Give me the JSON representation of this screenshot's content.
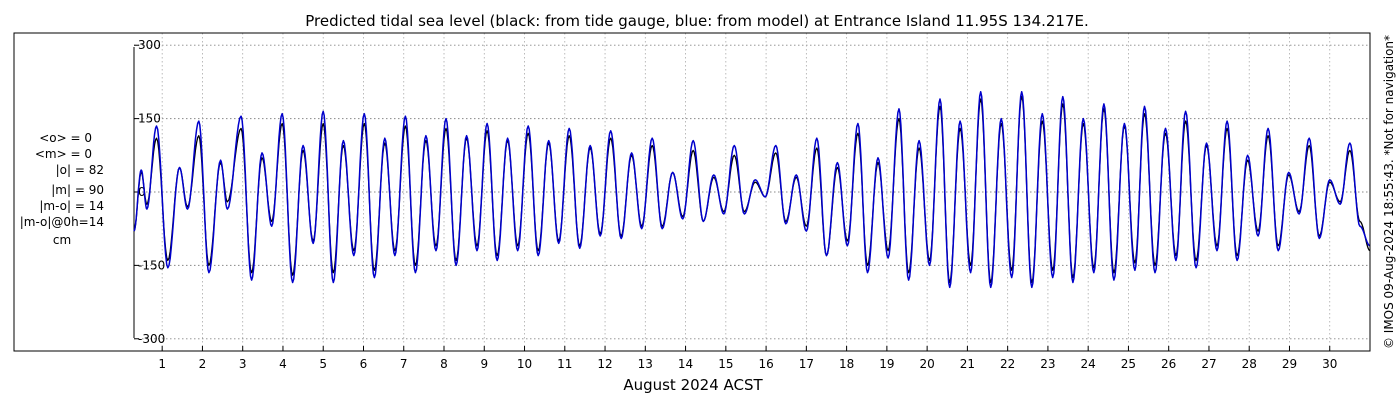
{
  "chart_data": {
    "type": "line",
    "title": "Predicted tidal sea level (black: from tide gauge, blue: from model) at Entrance Island 11.95S 134.217E.",
    "xlabel": "August 2024 ACST",
    "ylabel": "",
    "xlim": [
      0.3,
      31.0
    ],
    "ylim": [
      -325,
      325
    ],
    "yticks": [
      300,
      150,
      0,
      -150,
      -300
    ],
    "ytick_labels": [
      "300",
      "150",
      "0",
      "-150",
      "-300"
    ],
    "xticks": [
      1,
      2,
      3,
      4,
      5,
      6,
      7,
      8,
      9,
      10,
      11,
      12,
      13,
      14,
      15,
      16,
      17,
      18,
      19,
      20,
      21,
      22,
      23,
      24,
      25,
      26,
      27,
      28,
      29,
      30
    ],
    "xtick_labels": [
      "1",
      "2",
      "3",
      "4",
      "5",
      "6",
      "7",
      "8",
      "9",
      "10",
      "11",
      "12",
      "13",
      "14",
      "15",
      "16",
      "17",
      "18",
      "19",
      "20",
      "21",
      "22",
      "23",
      "24",
      "25",
      "26",
      "27",
      "28",
      "29",
      "30"
    ],
    "grid": true,
    "stats": [
      "<o> = 0",
      "<m> = 0",
      "|o| = 82",
      "|m| = 90",
      "|m-o| = 14",
      "|m-o|@0h=14",
      "cm"
    ],
    "credit": "© IMOS 09-Aug-2024 18:55:43. *Not for navigation*",
    "colors": {
      "gauge": "#000000",
      "model": "#0000cc",
      "grid": "#888888",
      "frame": "#000000"
    },
    "series": [
      {
        "name": "",
        "color": "#000000",
        "extrema": [
          [
            0.3,
            -80
          ],
          [
            0.48,
            40
          ],
          [
            0.62,
            -25
          ],
          [
            0.86,
            110
          ],
          [
            1.14,
            -140
          ],
          [
            1.43,
            50
          ],
          [
            1.63,
            -30
          ],
          [
            1.91,
            115
          ],
          [
            2.16,
            -150
          ],
          [
            2.45,
            60
          ],
          [
            2.62,
            -20
          ],
          [
            2.96,
            130
          ],
          [
            3.22,
            -165
          ],
          [
            3.48,
            70
          ],
          [
            3.72,
            -60
          ],
          [
            3.98,
            140
          ],
          [
            4.24,
            -170
          ],
          [
            4.5,
            85
          ],
          [
            4.75,
            -100
          ],
          [
            5.0,
            140
          ],
          [
            5.25,
            -165
          ],
          [
            5.5,
            95
          ],
          [
            5.76,
            -120
          ],
          [
            6.02,
            140
          ],
          [
            6.27,
            -160
          ],
          [
            6.53,
            100
          ],
          [
            6.78,
            -120
          ],
          [
            7.04,
            135
          ],
          [
            7.29,
            -150
          ],
          [
            7.55,
            105
          ],
          [
            7.8,
            -110
          ],
          [
            8.05,
            130
          ],
          [
            8.3,
            -140
          ],
          [
            8.56,
            110
          ],
          [
            8.82,
            -110
          ],
          [
            9.07,
            125
          ],
          [
            9.32,
            -130
          ],
          [
            9.58,
            105
          ],
          [
            9.83,
            -110
          ],
          [
            10.09,
            120
          ],
          [
            10.34,
            -120
          ],
          [
            10.6,
            100
          ],
          [
            10.85,
            -100
          ],
          [
            11.11,
            115
          ],
          [
            11.37,
            -110
          ],
          [
            11.63,
            90
          ],
          [
            11.88,
            -85
          ],
          [
            12.14,
            110
          ],
          [
            12.4,
            -90
          ],
          [
            12.66,
            75
          ],
          [
            12.91,
            -70
          ],
          [
            13.17,
            95
          ],
          [
            13.42,
            -70
          ],
          [
            13.68,
            40
          ],
          [
            13.93,
            -50
          ],
          [
            14.19,
            85
          ],
          [
            14.44,
            -60
          ],
          [
            14.7,
            30
          ],
          [
            14.95,
            -40
          ],
          [
            15.21,
            75
          ],
          [
            15.46,
            -40
          ],
          [
            15.73,
            20
          ],
          [
            15.98,
            -10
          ],
          [
            16.24,
            80
          ],
          [
            16.49,
            -60
          ],
          [
            16.75,
            30
          ],
          [
            17.0,
            -70
          ],
          [
            17.26,
            90
          ],
          [
            17.5,
            -130
          ],
          [
            17.77,
            50
          ],
          [
            18.02,
            -100
          ],
          [
            18.28,
            120
          ],
          [
            18.52,
            -150
          ],
          [
            18.78,
            60
          ],
          [
            19.03,
            -120
          ],
          [
            19.3,
            150
          ],
          [
            19.54,
            -165
          ],
          [
            19.8,
            90
          ],
          [
            20.06,
            -140
          ],
          [
            20.32,
            175
          ],
          [
            20.56,
            -185
          ],
          [
            20.82,
            130
          ],
          [
            21.08,
            -150
          ],
          [
            21.33,
            190
          ],
          [
            21.58,
            -185
          ],
          [
            21.84,
            140
          ],
          [
            22.1,
            -160
          ],
          [
            22.35,
            195
          ],
          [
            22.6,
            -185
          ],
          [
            22.86,
            145
          ],
          [
            23.12,
            -160
          ],
          [
            23.37,
            180
          ],
          [
            23.62,
            -175
          ],
          [
            23.88,
            140
          ],
          [
            24.14,
            -155
          ],
          [
            24.39,
            170
          ],
          [
            24.64,
            -165
          ],
          [
            24.9,
            135
          ],
          [
            25.16,
            -145
          ],
          [
            25.4,
            160
          ],
          [
            25.66,
            -150
          ],
          [
            25.92,
            120
          ],
          [
            26.18,
            -130
          ],
          [
            26.42,
            145
          ],
          [
            26.68,
            -140
          ],
          [
            26.94,
            95
          ],
          [
            27.2,
            -110
          ],
          [
            27.45,
            130
          ],
          [
            27.7,
            -130
          ],
          [
            27.96,
            65
          ],
          [
            28.22,
            -80
          ],
          [
            28.47,
            115
          ],
          [
            28.72,
            -110
          ],
          [
            28.98,
            35
          ],
          [
            29.24,
            -40
          ],
          [
            29.49,
            95
          ],
          [
            29.74,
            -90
          ],
          [
            30.0,
            20
          ],
          [
            30.26,
            -20
          ],
          [
            30.5,
            85
          ],
          [
            30.75,
            -60
          ],
          [
            31.0,
            -120
          ]
        ]
      },
      {
        "name": "",
        "color": "#0000cc",
        "extrema": [
          [
            0.3,
            -80
          ],
          [
            0.48,
            45
          ],
          [
            0.62,
            -35
          ],
          [
            0.86,
            135
          ],
          [
            1.14,
            -155
          ],
          [
            1.43,
            50
          ],
          [
            1.63,
            -35
          ],
          [
            1.91,
            145
          ],
          [
            2.16,
            -165
          ],
          [
            2.45,
            65
          ],
          [
            2.62,
            -35
          ],
          [
            2.96,
            155
          ],
          [
            3.22,
            -180
          ],
          [
            3.48,
            80
          ],
          [
            3.72,
            -70
          ],
          [
            3.98,
            160
          ],
          [
            4.24,
            -185
          ],
          [
            4.5,
            95
          ],
          [
            4.75,
            -105
          ],
          [
            5.0,
            165
          ],
          [
            5.25,
            -185
          ],
          [
            5.5,
            105
          ],
          [
            5.76,
            -130
          ],
          [
            6.02,
            160
          ],
          [
            6.27,
            -175
          ],
          [
            6.53,
            110
          ],
          [
            6.78,
            -130
          ],
          [
            7.04,
            155
          ],
          [
            7.29,
            -165
          ],
          [
            7.55,
            115
          ],
          [
            7.8,
            -120
          ],
          [
            8.05,
            150
          ],
          [
            8.3,
            -150
          ],
          [
            8.56,
            115
          ],
          [
            8.82,
            -120
          ],
          [
            9.07,
            140
          ],
          [
            9.32,
            -140
          ],
          [
            9.58,
            110
          ],
          [
            9.83,
            -120
          ],
          [
            10.09,
            135
          ],
          [
            10.34,
            -130
          ],
          [
            10.6,
            105
          ],
          [
            10.85,
            -105
          ],
          [
            11.11,
            130
          ],
          [
            11.37,
            -115
          ],
          [
            11.63,
            95
          ],
          [
            11.88,
            -90
          ],
          [
            12.14,
            125
          ],
          [
            12.4,
            -95
          ],
          [
            12.66,
            80
          ],
          [
            12.91,
            -75
          ],
          [
            13.17,
            110
          ],
          [
            13.42,
            -75
          ],
          [
            13.68,
            40
          ],
          [
            13.93,
            -55
          ],
          [
            14.19,
            105
          ],
          [
            14.44,
            -60
          ],
          [
            14.7,
            35
          ],
          [
            14.95,
            -45
          ],
          [
            15.21,
            95
          ],
          [
            15.46,
            -45
          ],
          [
            15.73,
            25
          ],
          [
            15.98,
            -10
          ],
          [
            16.24,
            95
          ],
          [
            16.49,
            -65
          ],
          [
            16.75,
            35
          ],
          [
            17.0,
            -80
          ],
          [
            17.26,
            110
          ],
          [
            17.5,
            -130
          ],
          [
            17.77,
            60
          ],
          [
            18.02,
            -110
          ],
          [
            18.28,
            140
          ],
          [
            18.52,
            -165
          ],
          [
            18.78,
            70
          ],
          [
            19.03,
            -135
          ],
          [
            19.3,
            170
          ],
          [
            19.54,
            -180
          ],
          [
            19.8,
            105
          ],
          [
            20.06,
            -150
          ],
          [
            20.32,
            190
          ],
          [
            20.56,
            -195
          ],
          [
            20.82,
            145
          ],
          [
            21.08,
            -165
          ],
          [
            21.33,
            205
          ],
          [
            21.58,
            -195
          ],
          [
            21.84,
            150
          ],
          [
            22.1,
            -175
          ],
          [
            22.35,
            205
          ],
          [
            22.6,
            -195
          ],
          [
            22.86,
            160
          ],
          [
            23.12,
            -175
          ],
          [
            23.37,
            195
          ],
          [
            23.62,
            -185
          ],
          [
            23.88,
            150
          ],
          [
            24.14,
            -165
          ],
          [
            24.39,
            180
          ],
          [
            24.64,
            -180
          ],
          [
            24.9,
            140
          ],
          [
            25.16,
            -160
          ],
          [
            25.4,
            175
          ],
          [
            25.66,
            -165
          ],
          [
            25.92,
            130
          ],
          [
            26.18,
            -140
          ],
          [
            26.42,
            165
          ],
          [
            26.68,
            -155
          ],
          [
            26.94,
            100
          ],
          [
            27.2,
            -120
          ],
          [
            27.45,
            145
          ],
          [
            27.7,
            -140
          ],
          [
            27.96,
            75
          ],
          [
            28.22,
            -90
          ],
          [
            28.47,
            130
          ],
          [
            28.72,
            -120
          ],
          [
            28.98,
            40
          ],
          [
            29.24,
            -45
          ],
          [
            29.49,
            110
          ],
          [
            29.74,
            -95
          ],
          [
            30.0,
            25
          ],
          [
            30.26,
            -25
          ],
          [
            30.5,
            100
          ],
          [
            30.75,
            -70
          ],
          [
            31.0,
            -110
          ]
        ]
      }
    ]
  }
}
